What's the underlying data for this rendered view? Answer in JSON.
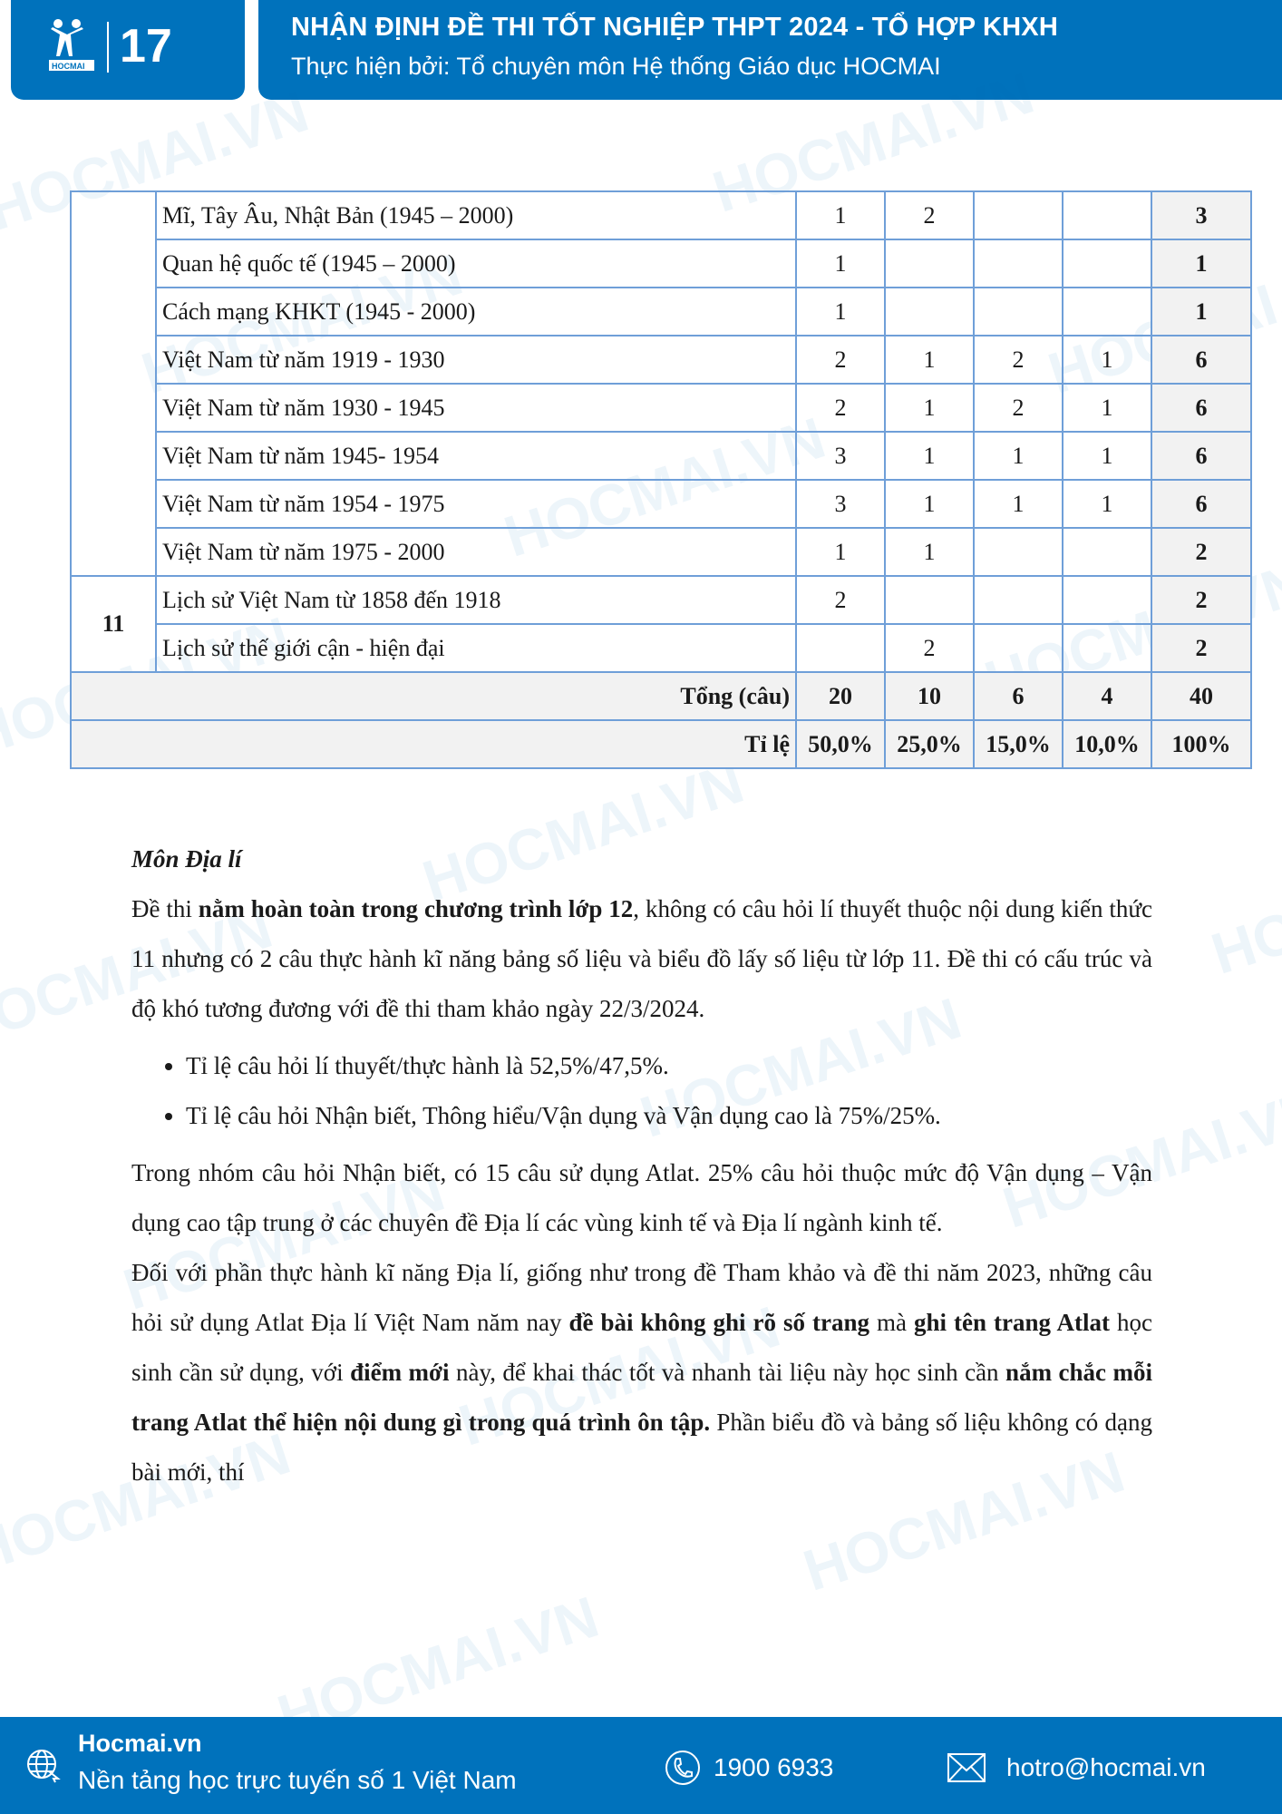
{
  "header": {
    "logo_text": "HOCMAI",
    "logo_years": "17",
    "title": "NHẬN ĐỊNH ĐỀ THI TỐT NGHIỆP THPT 2024 - TỔ HỢP KHXH",
    "subtitle": "Thực hiện bởi: Tổ chuyên môn Hệ thống Giáo dục HOCMAI"
  },
  "watermark": "HOCMAI.VN",
  "table": {
    "rows": [
      {
        "grade": "",
        "topic": "Mĩ, Tây Âu, Nhật Bản (1945 – 2000)",
        "v": [
          "1",
          "2",
          "",
          ""
        ],
        "total": "3"
      },
      {
        "grade": "",
        "topic": "Quan hệ quốc tế (1945 – 2000)",
        "v": [
          "1",
          "",
          "",
          ""
        ],
        "total": "1"
      },
      {
        "grade": "",
        "topic": "Cách mạng KHKT (1945 - 2000)",
        "v": [
          "1",
          "",
          "",
          ""
        ],
        "total": "1"
      },
      {
        "grade": "",
        "topic": "Việt Nam từ năm 1919 - 1930",
        "v": [
          "2",
          "1",
          "2",
          "1"
        ],
        "total": "6"
      },
      {
        "grade": "",
        "topic": "Việt Nam từ năm 1930 - 1945",
        "v": [
          "2",
          "1",
          "2",
          "1"
        ],
        "total": "6"
      },
      {
        "grade": "",
        "topic": "Việt Nam từ năm 1945- 1954",
        "v": [
          "3",
          "1",
          "1",
          "1"
        ],
        "total": "6"
      },
      {
        "grade": "",
        "topic": "Việt Nam từ năm 1954 - 1975",
        "v": [
          "3",
          "1",
          "1",
          "1"
        ],
        "total": "6"
      },
      {
        "grade": "",
        "topic": "Việt Nam từ năm 1975 - 2000",
        "v": [
          "1",
          "1",
          "",
          ""
        ],
        "total": "2"
      },
      {
        "grade": "11",
        "topic": "Lịch sử Việt Nam từ 1858 đến 1918",
        "v": [
          "2",
          "",
          "",
          ""
        ],
        "total": "2"
      },
      {
        "grade": "11",
        "topic": "Lịch sử thế giới cận - hiện đại",
        "v": [
          "",
          "2",
          "",
          ""
        ],
        "total": "2"
      }
    ],
    "sum": {
      "label": "Tổng (câu)",
      "v": [
        "20",
        "10",
        "6",
        "4"
      ],
      "total": "40"
    },
    "ratio": {
      "label": "Tỉ lệ",
      "v": [
        "50,0%",
        "25,0%",
        "15,0%",
        "10,0%"
      ],
      "total": "100%"
    }
  },
  "body": {
    "heading": "Môn Địa lí",
    "p1": [
      "Đề thi ",
      "nằm hoàn toàn trong chương trình lớp 12",
      ", không có câu hỏi lí thuyết thuộc nội dung kiến thức 11 nhưng có 2 câu thực hành kĩ năng bảng số liệu và biểu đồ lấy số liệu từ lớp 11. Đề thi có cấu trúc và độ khó tương đương với đề thi tham khảo ngày 22/3/2024."
    ],
    "bullets": [
      "Tỉ lệ câu hỏi lí thuyết/thực hành là 52,5%/47,5%.",
      "Tỉ lệ câu hỏi Nhận biết, Thông hiểu/Vận dụng và Vận dụng cao là 75%/25%."
    ],
    "p2": "Trong nhóm câu hỏi Nhận biết, có 15 câu sử dụng Atlat. 25% câu hỏi thuộc mức độ Vận dụng – Vận dụng cao tập trung ở các chuyên đề Địa lí các vùng kinh tế và Địa lí ngành kinh tế.",
    "p3": [
      "Đối với phần thực hành kĩ năng Địa lí, giống như trong đề Tham khảo và đề thi năm 2023, những câu hỏi sử dụng Atlat Địa lí Việt Nam năm nay ",
      "đề bài không ghi rõ số trang",
      " mà ",
      "ghi tên trang Atlat",
      " học sinh cần sử dụng, với ",
      "điểm mới",
      " này, để khai thác tốt và nhanh tài liệu này học sinh cần ",
      "nắm chắc mỗi trang Atlat thể hiện nội dung gì trong quá trình ôn tập.",
      " Phần biểu đồ và bảng số liệu không có dạng bài mới, thí"
    ]
  },
  "footer": {
    "site": "Hocmai.vn",
    "tagline": "Nền tảng học trực tuyến số 1 Việt Nam",
    "phone": "1900 6933",
    "email": "hotro@hocmai.vn"
  },
  "colors": {
    "brand": "#0072bc",
    "table_border": "#6f9fd8",
    "total_bg": "#f2f2f2"
  }
}
